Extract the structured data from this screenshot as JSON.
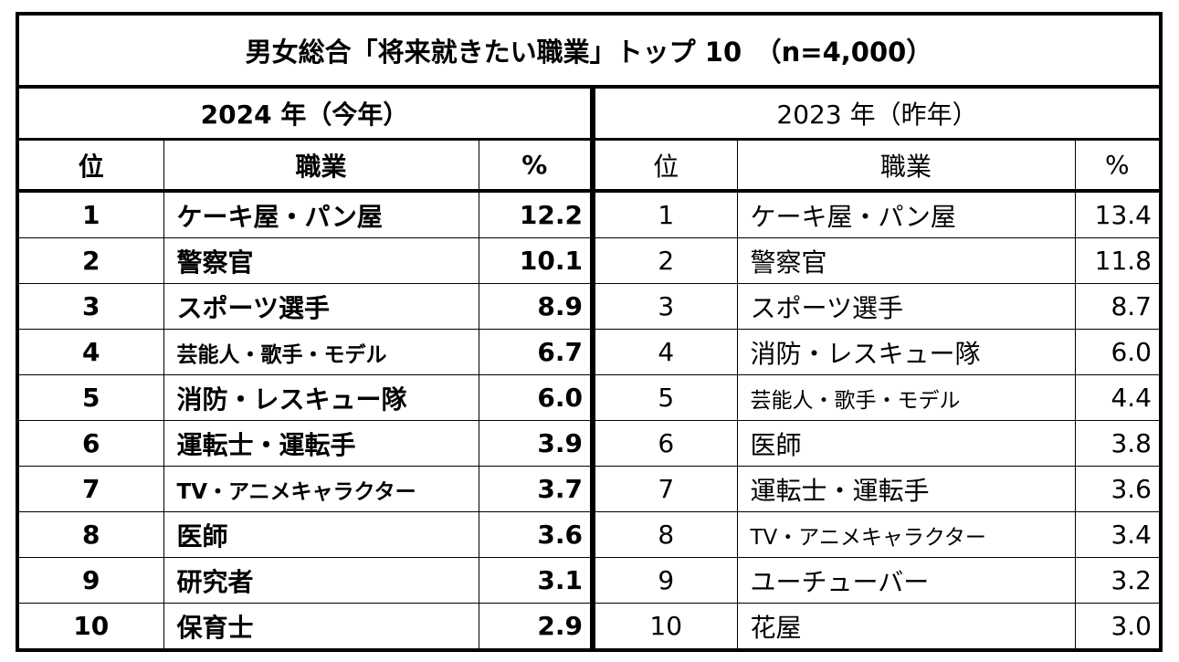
{
  "title": "男女総合「将来就きたい職業」トップ 10　（n=4,000）",
  "headers": {
    "rank": "位",
    "job": "職業",
    "pct": "%"
  },
  "chart_data": {
    "type": "table",
    "tables": [
      {
        "year_label": "2024 年（今年）",
        "rows": [
          {
            "rank": "1",
            "job": "ケーキ屋・パン屋",
            "pct": "12.2"
          },
          {
            "rank": "2",
            "job": "警察官",
            "pct": "10.1"
          },
          {
            "rank": "3",
            "job": "スポーツ選手",
            "pct": "8.9"
          },
          {
            "rank": "4",
            "job": "芸能人・歌手・モデル",
            "pct": "6.7"
          },
          {
            "rank": "5",
            "job": "消防・レスキュー隊",
            "pct": "6.0"
          },
          {
            "rank": "6",
            "job": "運転士・運転手",
            "pct": "3.9"
          },
          {
            "rank": "7",
            "job": "TV・アニメキャラクター",
            "pct": "3.7"
          },
          {
            "rank": "8",
            "job": "医師",
            "pct": "3.6"
          },
          {
            "rank": "9",
            "job": "研究者",
            "pct": "3.1"
          },
          {
            "rank": "10",
            "job": "保育士",
            "pct": "2.9"
          }
        ]
      },
      {
        "year_label": "2023 年（昨年）",
        "rows": [
          {
            "rank": "1",
            "job": "ケーキ屋・パン屋",
            "pct": "13.4"
          },
          {
            "rank": "2",
            "job": "警察官",
            "pct": "11.8"
          },
          {
            "rank": "3",
            "job": "スポーツ選手",
            "pct": "8.7"
          },
          {
            "rank": "4",
            "job": "消防・レスキュー隊",
            "pct": "6.0"
          },
          {
            "rank": "5",
            "job": "芸能人・歌手・モデル",
            "pct": "4.4"
          },
          {
            "rank": "6",
            "job": "医師",
            "pct": "3.8"
          },
          {
            "rank": "7",
            "job": "運転士・運転手",
            "pct": "3.6"
          },
          {
            "rank": "8",
            "job": "TV・アニメキャラクター",
            "pct": "3.4"
          },
          {
            "rank": "9",
            "job": "ユーチューバー",
            "pct": "3.2"
          },
          {
            "rank": "10",
            "job": "花屋",
            "pct": "3.0"
          }
        ]
      }
    ]
  }
}
